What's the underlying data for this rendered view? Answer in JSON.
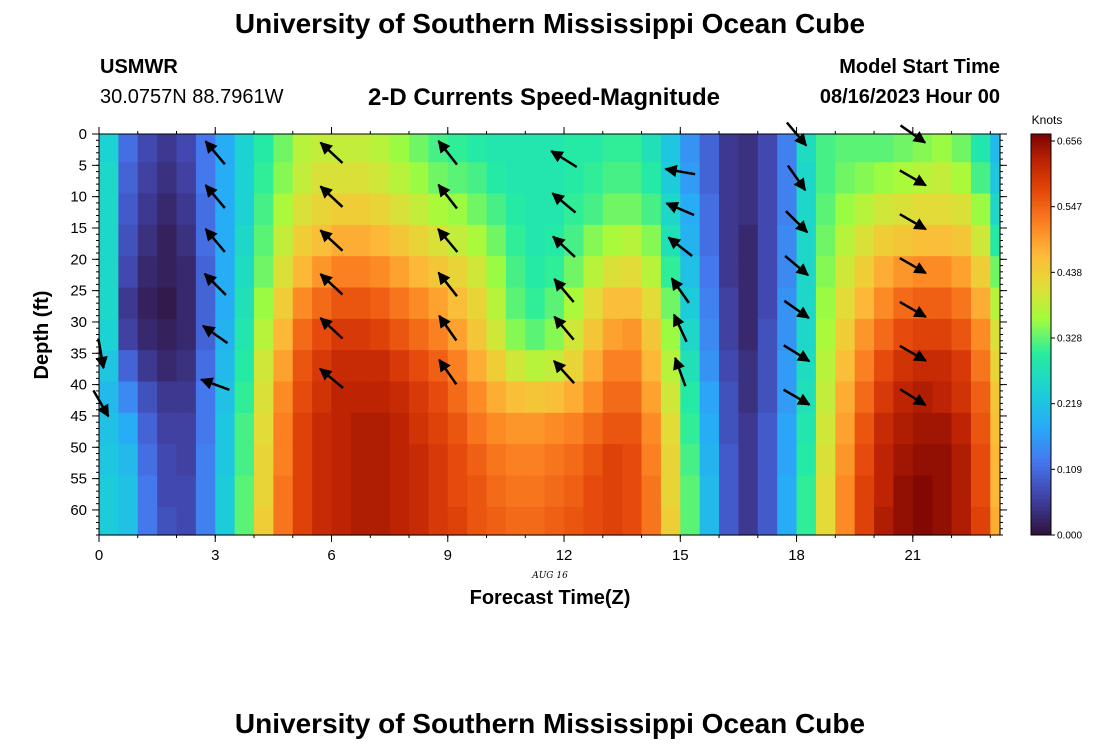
{
  "header": {
    "title": "University of Southern Mississippi Ocean Cube",
    "station": "USMWR",
    "coords": "30.0757N  88.7961W",
    "subtitle": "2-D Currents Speed-Magnitude",
    "model_label": "Model Start Time",
    "model_time": "08/16/2023 Hour 00"
  },
  "footer": {
    "title": "University of Southern Mississippi Ocean Cube"
  },
  "chart_data": {
    "type": "heatmap",
    "xlabel": "Forecast Time(Z)",
    "ylabel": "Depth (ft)",
    "date_label": "AUG 16",
    "x_range": [
      0,
      23.25
    ],
    "y_range": [
      0,
      64
    ],
    "x_ticks": [
      0,
      3,
      6,
      9,
      12,
      15,
      18,
      21
    ],
    "y_ticks": [
      0,
      5,
      10,
      15,
      20,
      25,
      30,
      35,
      40,
      45,
      50,
      55,
      60
    ],
    "colorbar": {
      "label": "Knots",
      "ticks": [
        "0.656",
        "0.547",
        "0.438",
        "0.328",
        "0.219",
        "0.109",
        "0.000"
      ],
      "range": [
        0,
        0.656
      ]
    },
    "time_hours": [
      0,
      0.5,
      1,
      1.5,
      2,
      2.5,
      3,
      3.5,
      4,
      4.5,
      5,
      5.5,
      6,
      6.5,
      7,
      7.5,
      8,
      8.5,
      9,
      9.5,
      10,
      10.5,
      11,
      11.5,
      12,
      12.5,
      13,
      13.5,
      14,
      14.5,
      15,
      15.5,
      16,
      16.5,
      17,
      17.5,
      18,
      18.5,
      19,
      19.5,
      20,
      20.5,
      21,
      21.5,
      22,
      22.5,
      23
    ],
    "depths_ft": [
      2,
      7,
      12,
      17,
      22,
      27,
      32,
      37,
      42,
      47,
      52,
      57,
      62
    ],
    "speed_knots": [
      [
        0.24,
        0.25,
        0.25,
        0.25,
        0.25,
        0.25,
        0.24,
        0.22,
        0.2,
        0.21,
        0.22,
        0.23,
        0.23
      ],
      [
        0.11,
        0.1,
        0.09,
        0.08,
        0.07,
        0.05,
        0.06,
        0.1,
        0.14,
        0.18,
        0.2,
        0.21,
        0.21
      ],
      [
        0.07,
        0.06,
        0.05,
        0.04,
        0.03,
        0.02,
        0.03,
        0.05,
        0.08,
        0.1,
        0.11,
        0.12,
        0.12
      ],
      [
        0.05,
        0.04,
        0.03,
        0.02,
        0.02,
        0.01,
        0.02,
        0.03,
        0.05,
        0.06,
        0.07,
        0.07,
        0.08
      ],
      [
        0.07,
        0.06,
        0.05,
        0.04,
        0.03,
        0.03,
        0.03,
        0.04,
        0.05,
        0.06,
        0.06,
        0.07,
        0.07
      ],
      [
        0.12,
        0.12,
        0.11,
        0.11,
        0.1,
        0.1,
        0.1,
        0.11,
        0.12,
        0.12,
        0.13,
        0.13,
        0.13
      ],
      [
        0.18,
        0.18,
        0.18,
        0.18,
        0.18,
        0.18,
        0.19,
        0.2,
        0.21,
        0.22,
        0.22,
        0.23,
        0.23
      ],
      [
        0.24,
        0.24,
        0.24,
        0.25,
        0.26,
        0.27,
        0.28,
        0.29,
        0.3,
        0.31,
        0.31,
        0.32,
        0.32
      ],
      [
        0.29,
        0.3,
        0.31,
        0.32,
        0.33,
        0.35,
        0.37,
        0.39,
        0.4,
        0.41,
        0.42,
        0.42,
        0.43
      ],
      [
        0.33,
        0.34,
        0.36,
        0.38,
        0.4,
        0.43,
        0.46,
        0.48,
        0.5,
        0.51,
        0.51,
        0.52,
        0.52
      ],
      [
        0.37,
        0.38,
        0.4,
        0.43,
        0.46,
        0.5,
        0.53,
        0.55,
        0.56,
        0.57,
        0.57,
        0.57,
        0.57
      ],
      [
        0.38,
        0.4,
        0.42,
        0.45,
        0.49,
        0.53,
        0.56,
        0.58,
        0.59,
        0.6,
        0.6,
        0.6,
        0.6
      ],
      [
        0.38,
        0.4,
        0.43,
        0.47,
        0.51,
        0.55,
        0.58,
        0.6,
        0.61,
        0.61,
        0.61,
        0.61,
        0.61
      ],
      [
        0.38,
        0.4,
        0.43,
        0.47,
        0.51,
        0.55,
        0.58,
        0.6,
        0.61,
        0.62,
        0.62,
        0.62,
        0.62
      ],
      [
        0.37,
        0.39,
        0.42,
        0.46,
        0.5,
        0.54,
        0.57,
        0.6,
        0.61,
        0.62,
        0.62,
        0.62,
        0.62
      ],
      [
        0.35,
        0.37,
        0.4,
        0.44,
        0.48,
        0.52,
        0.55,
        0.58,
        0.6,
        0.61,
        0.61,
        0.61,
        0.61
      ],
      [
        0.33,
        0.35,
        0.38,
        0.42,
        0.46,
        0.5,
        0.53,
        0.56,
        0.58,
        0.59,
        0.6,
        0.6,
        0.6
      ],
      [
        0.31,
        0.33,
        0.36,
        0.4,
        0.44,
        0.48,
        0.51,
        0.54,
        0.56,
        0.57,
        0.58,
        0.58,
        0.58
      ],
      [
        0.3,
        0.32,
        0.35,
        0.38,
        0.42,
        0.45,
        0.48,
        0.51,
        0.53,
        0.55,
        0.56,
        0.56,
        0.57
      ],
      [
        0.29,
        0.31,
        0.33,
        0.36,
        0.39,
        0.42,
        0.44,
        0.47,
        0.5,
        0.52,
        0.54,
        0.55,
        0.55
      ],
      [
        0.28,
        0.29,
        0.31,
        0.33,
        0.35,
        0.37,
        0.39,
        0.43,
        0.47,
        0.5,
        0.52,
        0.53,
        0.54
      ],
      [
        0.28,
        0.28,
        0.29,
        0.3,
        0.31,
        0.32,
        0.34,
        0.39,
        0.45,
        0.49,
        0.51,
        0.52,
        0.53
      ],
      [
        0.28,
        0.28,
        0.28,
        0.28,
        0.29,
        0.3,
        0.32,
        0.37,
        0.44,
        0.49,
        0.51,
        0.52,
        0.53
      ],
      [
        0.28,
        0.28,
        0.28,
        0.29,
        0.3,
        0.32,
        0.34,
        0.38,
        0.45,
        0.5,
        0.52,
        0.53,
        0.54
      ],
      [
        0.29,
        0.29,
        0.3,
        0.31,
        0.33,
        0.36,
        0.39,
        0.42,
        0.47,
        0.51,
        0.53,
        0.54,
        0.55
      ],
      [
        0.29,
        0.3,
        0.31,
        0.34,
        0.37,
        0.41,
        0.44,
        0.47,
        0.5,
        0.53,
        0.55,
        0.56,
        0.56
      ],
      [
        0.3,
        0.31,
        0.33,
        0.36,
        0.4,
        0.45,
        0.48,
        0.51,
        0.53,
        0.55,
        0.57,
        0.57,
        0.57
      ],
      [
        0.3,
        0.31,
        0.33,
        0.37,
        0.41,
        0.45,
        0.49,
        0.51,
        0.53,
        0.55,
        0.56,
        0.56,
        0.56
      ],
      [
        0.27,
        0.29,
        0.31,
        0.34,
        0.37,
        0.41,
        0.44,
        0.46,
        0.48,
        0.5,
        0.51,
        0.52,
        0.52
      ],
      [
        0.22,
        0.23,
        0.25,
        0.27,
        0.3,
        0.33,
        0.35,
        0.37,
        0.39,
        0.41,
        0.42,
        0.42,
        0.43
      ],
      [
        0.15,
        0.16,
        0.18,
        0.19,
        0.21,
        0.23,
        0.25,
        0.27,
        0.29,
        0.3,
        0.31,
        0.32,
        0.32
      ],
      [
        0.1,
        0.1,
        0.11,
        0.11,
        0.12,
        0.13,
        0.14,
        0.15,
        0.17,
        0.18,
        0.19,
        0.2,
        0.2
      ],
      [
        0.05,
        0.05,
        0.05,
        0.05,
        0.05,
        0.06,
        0.06,
        0.07,
        0.08,
        0.08,
        0.09,
        0.09,
        0.09
      ],
      [
        0.04,
        0.04,
        0.04,
        0.03,
        0.03,
        0.03,
        0.03,
        0.04,
        0.04,
        0.05,
        0.05,
        0.05,
        0.05
      ],
      [
        0.07,
        0.07,
        0.07,
        0.07,
        0.07,
        0.07,
        0.08,
        0.08,
        0.08,
        0.09,
        0.09,
        0.09,
        0.09
      ],
      [
        0.13,
        0.13,
        0.13,
        0.14,
        0.14,
        0.15,
        0.15,
        0.16,
        0.16,
        0.17,
        0.17,
        0.18,
        0.18
      ],
      [
        0.26,
        0.25,
        0.25,
        0.25,
        0.25,
        0.25,
        0.25,
        0.26,
        0.27,
        0.28,
        0.29,
        0.3,
        0.3
      ],
      [
        0.31,
        0.31,
        0.32,
        0.33,
        0.34,
        0.35,
        0.36,
        0.37,
        0.38,
        0.39,
        0.4,
        0.41,
        0.41
      ],
      [
        0.32,
        0.33,
        0.35,
        0.37,
        0.39,
        0.41,
        0.43,
        0.45,
        0.47,
        0.48,
        0.49,
        0.5,
        0.5
      ],
      [
        0.32,
        0.34,
        0.37,
        0.4,
        0.43,
        0.46,
        0.49,
        0.51,
        0.53,
        0.55,
        0.56,
        0.57,
        0.57
      ],
      [
        0.32,
        0.35,
        0.39,
        0.43,
        0.47,
        0.5,
        0.53,
        0.56,
        0.58,
        0.6,
        0.61,
        0.61,
        0.62
      ],
      [
        0.33,
        0.36,
        0.4,
        0.44,
        0.49,
        0.53,
        0.56,
        0.59,
        0.61,
        0.62,
        0.63,
        0.64,
        0.64
      ],
      [
        0.34,
        0.37,
        0.41,
        0.45,
        0.5,
        0.54,
        0.57,
        0.6,
        0.62,
        0.63,
        0.64,
        0.65,
        0.65
      ],
      [
        0.35,
        0.38,
        0.41,
        0.45,
        0.5,
        0.54,
        0.57,
        0.6,
        0.61,
        0.63,
        0.64,
        0.64,
        0.64
      ],
      [
        0.33,
        0.36,
        0.4,
        0.44,
        0.48,
        0.52,
        0.55,
        0.58,
        0.59,
        0.61,
        0.62,
        0.62,
        0.62
      ],
      [
        0.28,
        0.31,
        0.35,
        0.39,
        0.43,
        0.47,
        0.5,
        0.52,
        0.54,
        0.55,
        0.56,
        0.56,
        0.57
      ],
      [
        0.2,
        0.22,
        0.25,
        0.29,
        0.33,
        0.37,
        0.4,
        0.42,
        0.44,
        0.45,
        0.46,
        0.46,
        0.47
      ]
    ],
    "vectors": [
      {
        "t": 0.05,
        "depth": 35,
        "dir_deg": 170
      },
      {
        "t": 0.05,
        "depth": 43,
        "dir_deg": 150
      },
      {
        "t": 3.0,
        "depth": 3,
        "dir_deg": 320
      },
      {
        "t": 3.0,
        "depth": 10,
        "dir_deg": 320
      },
      {
        "t": 3.0,
        "depth": 17,
        "dir_deg": 320
      },
      {
        "t": 3.0,
        "depth": 24,
        "dir_deg": 315
      },
      {
        "t": 3.0,
        "depth": 32,
        "dir_deg": 305
      },
      {
        "t": 3.0,
        "depth": 40,
        "dir_deg": 290
      },
      {
        "t": 6.0,
        "depth": 3,
        "dir_deg": 313
      },
      {
        "t": 6.0,
        "depth": 10,
        "dir_deg": 313
      },
      {
        "t": 6.0,
        "depth": 17,
        "dir_deg": 313
      },
      {
        "t": 6.0,
        "depth": 24,
        "dir_deg": 313
      },
      {
        "t": 6.0,
        "depth": 31,
        "dir_deg": 313
      },
      {
        "t": 6.0,
        "depth": 39,
        "dir_deg": 310
      },
      {
        "t": 9.0,
        "depth": 3,
        "dir_deg": 322
      },
      {
        "t": 9.0,
        "depth": 10,
        "dir_deg": 322
      },
      {
        "t": 9.0,
        "depth": 17,
        "dir_deg": 320
      },
      {
        "t": 9.0,
        "depth": 24,
        "dir_deg": 322
      },
      {
        "t": 9.0,
        "depth": 31,
        "dir_deg": 325
      },
      {
        "t": 9.0,
        "depth": 38,
        "dir_deg": 325
      },
      {
        "t": 12.0,
        "depth": 4,
        "dir_deg": 302
      },
      {
        "t": 12.0,
        "depth": 11,
        "dir_deg": 310
      },
      {
        "t": 12.0,
        "depth": 18,
        "dir_deg": 313
      },
      {
        "t": 12.0,
        "depth": 25,
        "dir_deg": 320
      },
      {
        "t": 12.0,
        "depth": 31,
        "dir_deg": 320
      },
      {
        "t": 12.0,
        "depth": 38,
        "dir_deg": 318
      },
      {
        "t": 15.0,
        "depth": 6,
        "dir_deg": 280
      },
      {
        "t": 15.0,
        "depth": 12,
        "dir_deg": 293
      },
      {
        "t": 15.0,
        "depth": 18,
        "dir_deg": 308
      },
      {
        "t": 15.0,
        "depth": 25,
        "dir_deg": 325
      },
      {
        "t": 15.0,
        "depth": 31,
        "dir_deg": 335
      },
      {
        "t": 15.0,
        "depth": 38,
        "dir_deg": 340
      },
      {
        "t": 18.0,
        "depth": 0,
        "dir_deg": 140
      },
      {
        "t": 18.0,
        "depth": 7,
        "dir_deg": 145
      },
      {
        "t": 18.0,
        "depth": 14,
        "dir_deg": 135
      },
      {
        "t": 18.0,
        "depth": 21,
        "dir_deg": 130
      },
      {
        "t": 18.0,
        "depth": 28,
        "dir_deg": 125
      },
      {
        "t": 18.0,
        "depth": 35,
        "dir_deg": 122
      },
      {
        "t": 18.0,
        "depth": 42,
        "dir_deg": 120
      },
      {
        "t": 21.0,
        "depth": 0,
        "dir_deg": 125
      },
      {
        "t": 21.0,
        "depth": 7,
        "dir_deg": 120
      },
      {
        "t": 21.0,
        "depth": 14,
        "dir_deg": 120
      },
      {
        "t": 21.0,
        "depth": 21,
        "dir_deg": 120
      },
      {
        "t": 21.0,
        "depth": 28,
        "dir_deg": 120
      },
      {
        "t": 21.0,
        "depth": 35,
        "dir_deg": 120
      },
      {
        "t": 21.0,
        "depth": 42,
        "dir_deg": 122
      }
    ]
  }
}
